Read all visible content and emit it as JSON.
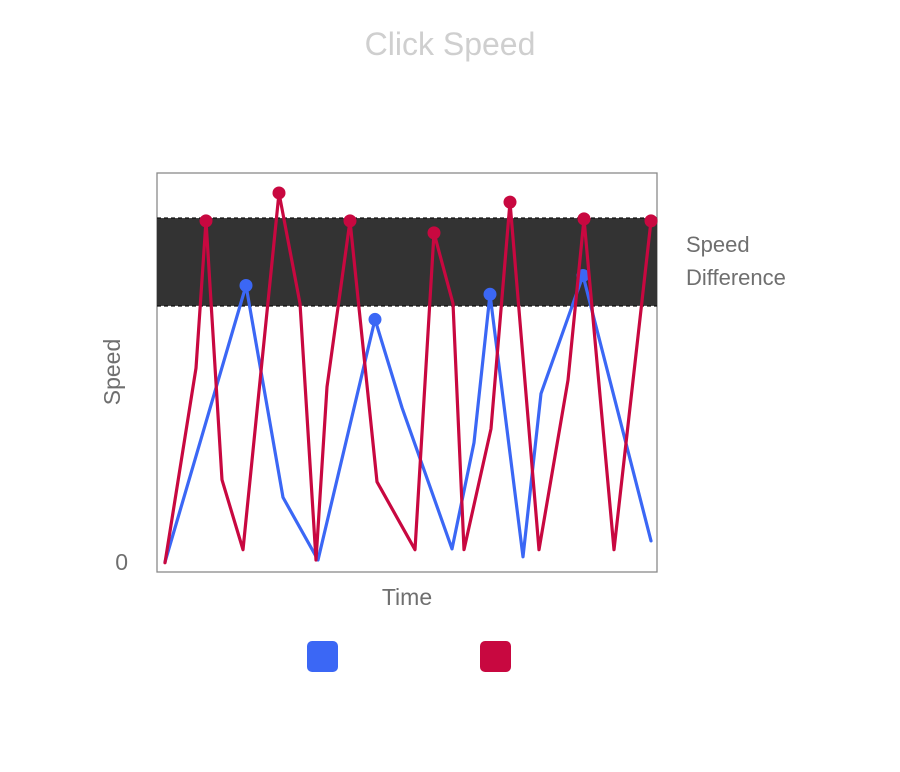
{
  "chart_data": {
    "type": "line",
    "title": "Click Speed",
    "xlabel": "Time",
    "ylabel": "Speed",
    "ytick_label": "0",
    "xlim": [
      0,
      100
    ],
    "ylim": [
      0,
      100
    ],
    "grid": false,
    "legend_placement": "bottom",
    "band": {
      "label_lines": [
        "Speed",
        "Difference"
      ],
      "y_from": 66.7,
      "y_to": 88.7,
      "color": "#333333"
    },
    "series": [
      {
        "color": "#3b67f5",
        "x": [
          1.6,
          17.8,
          25.2,
          32.2,
          43.6,
          49.0,
          59.0,
          63.4,
          66.6,
          73.2,
          76.8,
          85.2,
          98.8
        ],
        "y": [
          2.5,
          71.8,
          18.7,
          3.0,
          63.3,
          41.2,
          5.8,
          32.4,
          69.6,
          3.8,
          44.7,
          74.3,
          7.8
        ],
        "markers_at": [
          1,
          4,
          8,
          11
        ]
      },
      {
        "color": "#c80840",
        "x": [
          1.6,
          7.8,
          9.8,
          13.0,
          17.2,
          24.4,
          28.6,
          31.8,
          34.0,
          38.6,
          44.0,
          51.6,
          55.4,
          59.2,
          61.4,
          66.8,
          70.6,
          76.4,
          82.2,
          85.4,
          91.4,
          98.8
        ],
        "y": [
          2.3,
          51.1,
          88.0,
          23.1,
          5.6,
          95.0,
          67.3,
          3.0,
          46.4,
          88.0,
          22.6,
          5.6,
          85.0,
          67.3,
          5.6,
          35.9,
          92.7,
          5.6,
          48.1,
          88.5,
          5.6,
          88.0
        ],
        "markers_at": [
          2,
          5,
          9,
          12,
          16,
          19,
          21
        ]
      }
    ]
  }
}
